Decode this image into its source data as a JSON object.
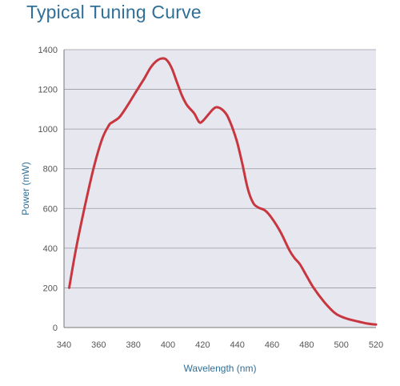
{
  "chart_data": {
    "type": "line",
    "title": "Typical Tuning Curve",
    "xlabel": "Wavelength (nm)",
    "ylabel": "Power (mW)",
    "xlim": [
      340,
      520
    ],
    "ylim": [
      0,
      1400
    ],
    "x_ticks": [
      340,
      360,
      380,
      400,
      420,
      440,
      460,
      480,
      500,
      520
    ],
    "y_ticks": [
      0,
      200,
      400,
      600,
      800,
      1000,
      1200,
      1400
    ],
    "grid": "horizontal",
    "legend": "none",
    "colors": {
      "plot_background": "#e6e7ef",
      "grid": "#9a9aa0",
      "line": "#c8363f",
      "title": "#2f6f98",
      "axis_label": "#2f6f98",
      "tick_label": "#555555"
    },
    "series": [
      {
        "x": [
          343,
          347,
          352,
          357,
          362,
          366,
          368,
          372,
          376,
          381,
          386,
          390,
          393,
          396,
          399,
          402,
          405,
          408,
          411,
          415,
          418,
          420,
          423,
          426,
          428,
          431,
          434,
          437,
          440,
          443,
          446,
          449,
          452,
          456,
          460,
          465,
          470,
          473,
          476,
          480,
          484,
          490,
          496,
          500,
          505,
          510,
          515,
          520
        ],
        "y": [
          200,
          400,
          610,
          800,
          950,
          1020,
          1035,
          1060,
          1110,
          1180,
          1250,
          1310,
          1340,
          1355,
          1350,
          1310,
          1240,
          1170,
          1120,
          1080,
          1035,
          1040,
          1070,
          1100,
          1110,
          1100,
          1070,
          1010,
          930,
          820,
          700,
          630,
          605,
          590,
          550,
          480,
          390,
          350,
          320,
          260,
          200,
          130,
          75,
          55,
          40,
          30,
          20,
          15
        ]
      }
    ]
  }
}
